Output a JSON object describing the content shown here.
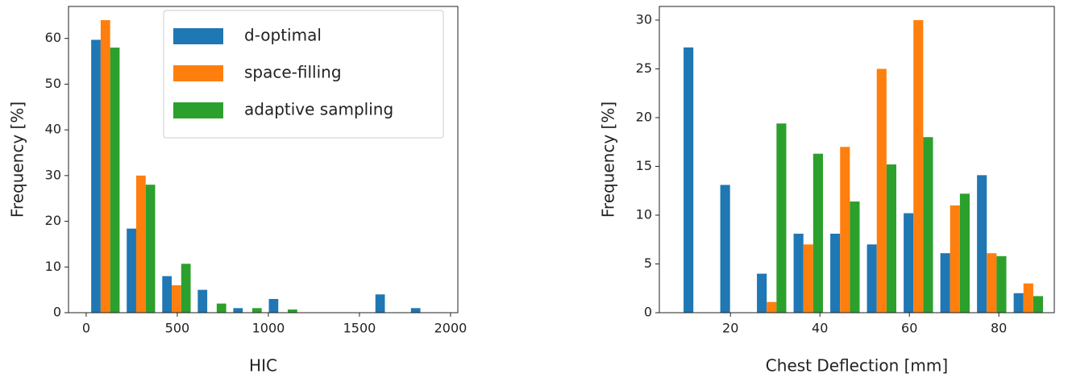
{
  "chart_data": [
    {
      "type": "histogram",
      "xlabel": "HIC",
      "ylabel": "Frequency [%]",
      "bins": [
        8,
        203,
        398,
        593,
        788,
        983,
        1178,
        1373,
        1568,
        1763,
        1958
      ],
      "series": [
        {
          "name": "d-optimal",
          "color": "#1f77b4",
          "values": [
            59.7,
            18.4,
            8,
            5,
            1,
            3,
            0,
            0,
            4,
            1
          ]
        },
        {
          "name": "space-filling",
          "color": "#ff7f0e",
          "values": [
            64,
            30,
            6,
            0,
            0,
            0,
            0,
            0,
            0,
            0
          ]
        },
        {
          "name": "adaptive sampling",
          "color": "#2ca02c",
          "values": [
            58,
            28,
            10.7,
            2,
            1,
            0.7,
            0,
            0,
            0,
            0
          ]
        }
      ],
      "xlim": [
        -97,
        2040
      ],
      "xticks": [
        0,
        500,
        1000,
        1500,
        2000
      ],
      "ylim": [
        0,
        67
      ],
      "yticks": [
        0,
        10,
        20,
        30,
        40,
        50,
        60
      ],
      "legend": "upper right"
    },
    {
      "type": "histogram",
      "xlabel": "Chest Deflection [mm]",
      "ylabel": "Frequency [%]",
      "bins": [
        8.7,
        16.9,
        25.1,
        33.3,
        41.5,
        49.7,
        57.9,
        66.1,
        74.3,
        82.5,
        90.7
      ],
      "series": [
        {
          "color": "#1f77b4",
          "values": [
            27.2,
            13.1,
            4,
            8.1,
            8.1,
            7,
            10.2,
            6.1,
            14.1,
            2
          ]
        },
        {
          "color": "#ff7f0e",
          "values": [
            0,
            0,
            1.1,
            7,
            17,
            25,
            30,
            11,
            6.1,
            3
          ]
        },
        {
          "color": "#2ca02c",
          "values": [
            0,
            0,
            19.4,
            16.3,
            11.4,
            15.2,
            18,
            12.2,
            5.8,
            1.7
          ]
        }
      ],
      "xlim": [
        4.1,
        92.4
      ],
      "xticks": [
        20,
        40,
        60,
        80
      ],
      "ylim": [
        0,
        31.4
      ],
      "yticks": [
        0,
        5,
        10,
        15,
        20,
        25,
        30
      ]
    }
  ]
}
